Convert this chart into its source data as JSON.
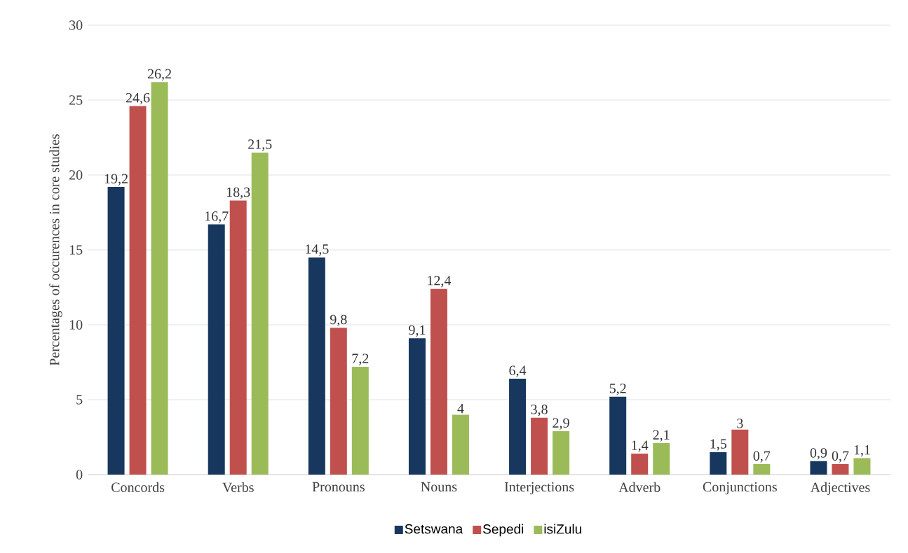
{
  "chart_data": {
    "type": "bar",
    "ylabel": "Percentages of occurences in core studies",
    "categories": [
      "Concords",
      "Verbs",
      "Pronouns",
      "Nouns",
      "Interjections",
      "Adverb",
      "Conjunctions",
      "Adjectives"
    ],
    "series": [
      {
        "name": "Setswana",
        "color": "#17375e",
        "values": [
          19.2,
          16.7,
          14.5,
          9.1,
          6.4,
          5.2,
          1.5,
          0.9
        ],
        "value_labels": [
          "19,2",
          "16,7",
          "14,5",
          "9,1",
          "6,4",
          "5,2",
          "1,5",
          "0,9"
        ]
      },
      {
        "name": "Sepedi",
        "color": "#c0504d",
        "values": [
          24.6,
          18.3,
          9.8,
          12.4,
          3.8,
          1.4,
          3,
          0.7
        ],
        "value_labels": [
          "24,6",
          "18,3",
          "9,8",
          "12,4",
          "3,8",
          "1,4",
          "3",
          "0,7"
        ]
      },
      {
        "name": "isiZulu",
        "color": "#9bbb59",
        "values": [
          26.2,
          21.5,
          7.2,
          4,
          2.9,
          2.1,
          0.7,
          1.1
        ],
        "value_labels": [
          "26,2",
          "21,5",
          "7,2",
          "4",
          "2,9",
          "2,1",
          "0,7",
          "1,1"
        ]
      }
    ],
    "ylim": [
      0,
      30
    ],
    "yticks": [
      0,
      5,
      10,
      15,
      20,
      25,
      30
    ],
    "grid": "y",
    "legend": "bottom"
  }
}
